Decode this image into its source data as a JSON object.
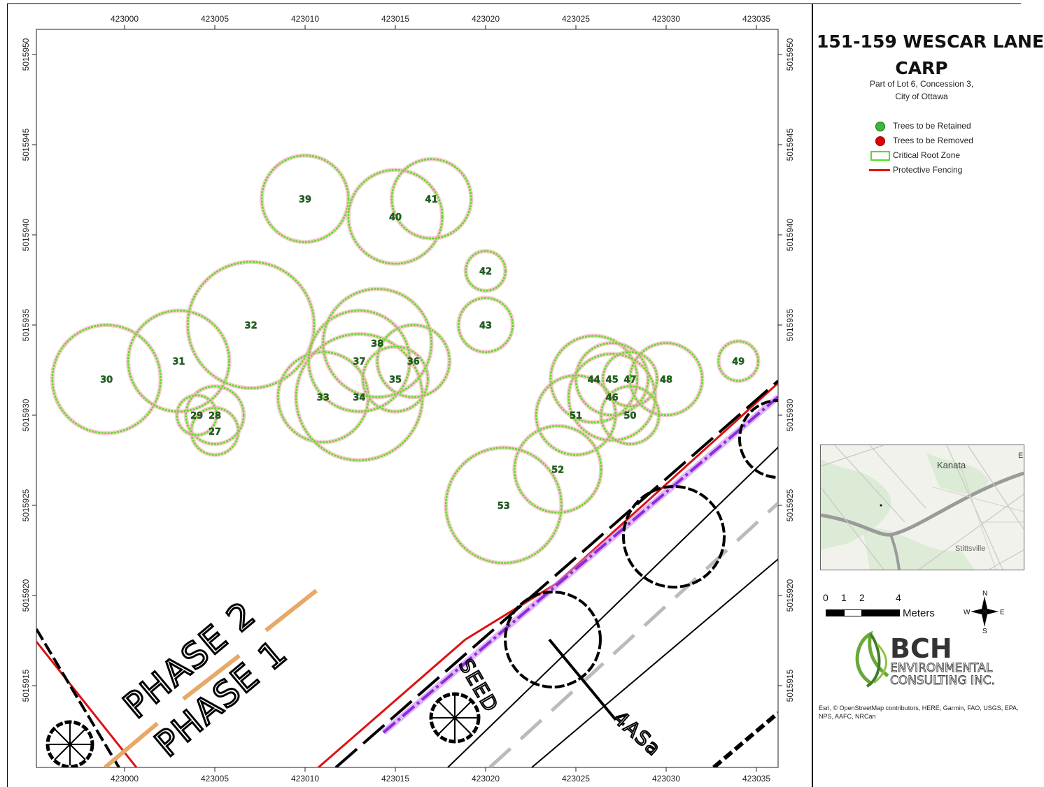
{
  "title_line1": "151-159 WESCAR LANE",
  "title_line2": "CARP",
  "subtitle_line1": "Part of Lot 6, Concession 3,",
  "subtitle_line2": "City of Ottawa",
  "legend": [
    {
      "label": "Trees to be Retained",
      "symbol": "green-dot"
    },
    {
      "label": "Trees to be Removed",
      "symbol": "red-dot"
    },
    {
      "label": "Critical Root Zone",
      "symbol": "green-square-outline"
    },
    {
      "label": "Protective Fencing",
      "symbol": "red-line"
    }
  ],
  "axes": {
    "x_ticks": [
      "423000",
      "423005",
      "423010",
      "423015",
      "423020",
      "423025",
      "423030",
      "423035"
    ],
    "y_ticks": [
      "5015950",
      "5015945",
      "5015940",
      "5015935",
      "5015930",
      "5015925",
      "5015920",
      "5015915"
    ]
  },
  "trees": [
    {
      "id": "27",
      "x": 423005.0,
      "y": 5015929.1,
      "r": 1.3
    },
    {
      "id": "28",
      "x": 423005.0,
      "y": 5015930.0,
      "r": 1.6
    },
    {
      "id": "29",
      "x": 423004.0,
      "y": 5015930.0,
      "r": 1.1
    },
    {
      "id": "30",
      "x": 422999.0,
      "y": 5015932.0,
      "r": 3.0
    },
    {
      "id": "31",
      "x": 423003.0,
      "y": 5015933.0,
      "r": 2.8
    },
    {
      "id": "32",
      "x": 423007.0,
      "y": 5015935.0,
      "r": 3.5
    },
    {
      "id": "33",
      "x": 423011.0,
      "y": 5015931.0,
      "r": 2.5
    },
    {
      "id": "34",
      "x": 423013.0,
      "y": 5015931.0,
      "r": 3.5
    },
    {
      "id": "35",
      "x": 423015.0,
      "y": 5015932.0,
      "r": 1.8
    },
    {
      "id": "36",
      "x": 423016.0,
      "y": 5015933.0,
      "r": 2.0
    },
    {
      "id": "37",
      "x": 423013.0,
      "y": 5015933.0,
      "r": 2.8
    },
    {
      "id": "38",
      "x": 423014.0,
      "y": 5015934.0,
      "r": 3.0
    },
    {
      "id": "39",
      "x": 423010.0,
      "y": 5015942.0,
      "r": 2.4
    },
    {
      "id": "40",
      "x": 423015.0,
      "y": 5015941.0,
      "r": 2.6
    },
    {
      "id": "41",
      "x": 423017.0,
      "y": 5015942.0,
      "r": 2.2
    },
    {
      "id": "42",
      "x": 423020.0,
      "y": 5015938.0,
      "r": 1.1
    },
    {
      "id": "43",
      "x": 423020.0,
      "y": 5015935.0,
      "r": 1.5
    },
    {
      "id": "44",
      "x": 423026.0,
      "y": 5015932.0,
      "r": 2.4
    },
    {
      "id": "45",
      "x": 423027.0,
      "y": 5015932.0,
      "r": 2.0
    },
    {
      "id": "46",
      "x": 423027.0,
      "y": 5015931.0,
      "r": 2.4
    },
    {
      "id": "47",
      "x": 423028.0,
      "y": 5015932.0,
      "r": 1.5
    },
    {
      "id": "48",
      "x": 423030.0,
      "y": 5015932.0,
      "r": 2.0
    },
    {
      "id": "49",
      "x": 423034.0,
      "y": 5015933.0,
      "r": 1.1
    },
    {
      "id": "50",
      "x": 423028.0,
      "y": 5015930.0,
      "r": 1.6
    },
    {
      "id": "51",
      "x": 423025.0,
      "y": 5015930.0,
      "r": 2.2
    },
    {
      "id": "52",
      "x": 423024.0,
      "y": 5015927.0,
      "r": 2.4
    },
    {
      "id": "53",
      "x": 423021.0,
      "y": 5015925.0,
      "r": 3.2
    }
  ],
  "plan_labels": {
    "phase2": "PHASE 2",
    "phase1": "PHASE 1",
    "seed": "SEED",
    "lot": "4ASa"
  },
  "inset_labels": {
    "kanata": "Kanata",
    "stittsville": "Stittsville",
    "edge": "E"
  },
  "scale": {
    "ticks": [
      "0",
      "1",
      "2",
      "4"
    ],
    "unit": "Meters"
  },
  "north": {
    "n": "N",
    "s": "S",
    "e": "E",
    "w": "W"
  },
  "logo": {
    "brand": "BCH",
    "line1": "ENVIRONMENTAL",
    "line2": "CONSULTING INC."
  },
  "credits": "Esri, © OpenStreetMap contributors, HERE, Garmin, FAO, USGS, EPA, NPS, AAFC, NRCan",
  "colors": {
    "crz": "#55dd22",
    "crz_halo": "#f5b5b5",
    "label": "#1d6b1d",
    "fence": "#dd1111",
    "purple": "#8a2be2"
  }
}
